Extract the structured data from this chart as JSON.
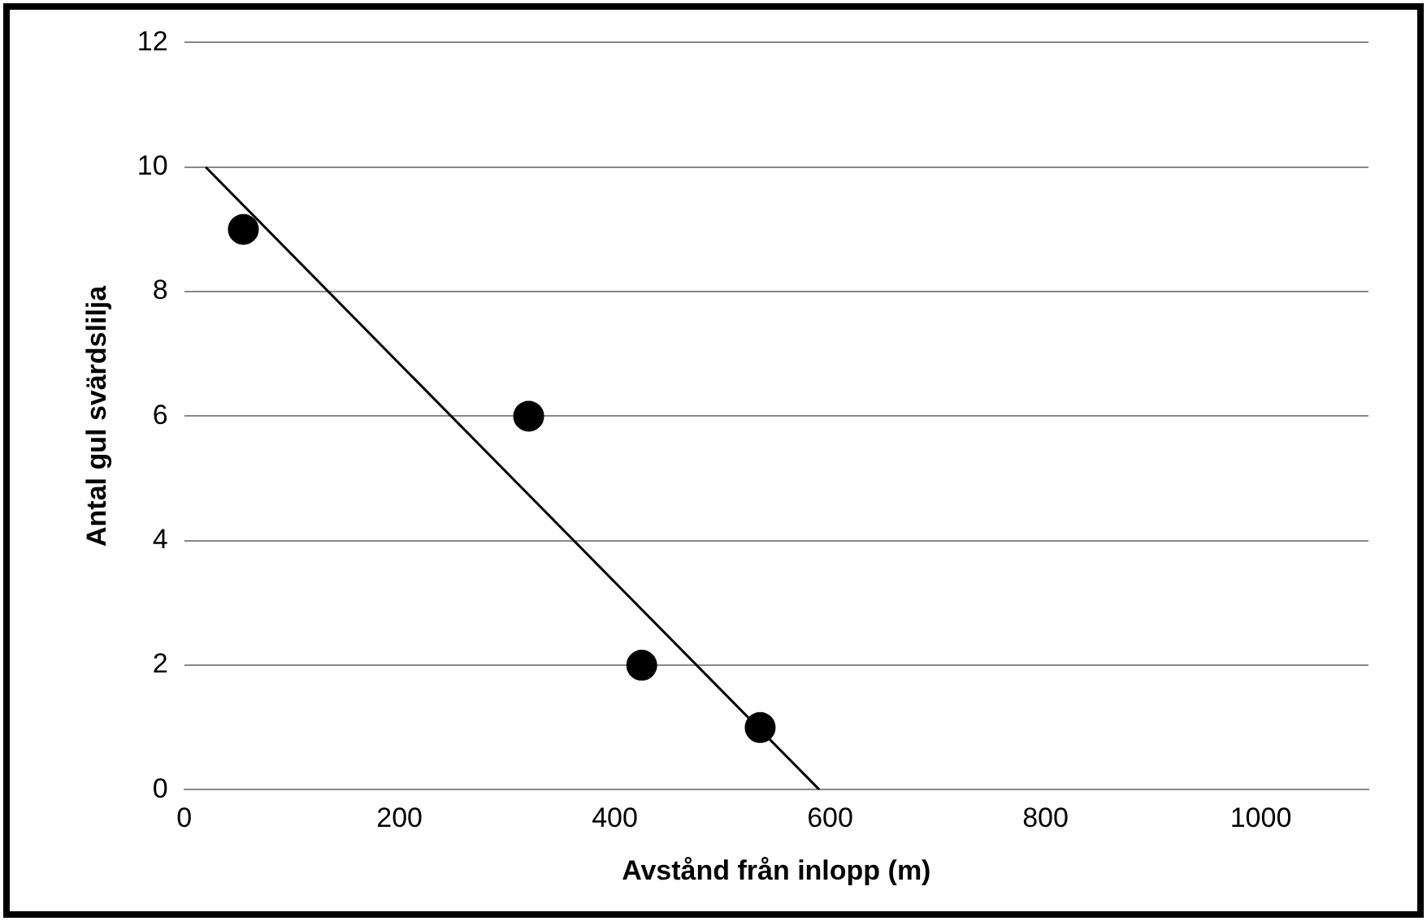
{
  "chart_data": {
    "type": "scatter",
    "xlabel": "Avstånd från inlopp (m)",
    "ylabel": "Antal gul svärdslilja",
    "xlim": [
      0,
      1100
    ],
    "xticks": [
      0,
      200,
      400,
      600,
      800,
      1000
    ],
    "ylim": [
      0,
      12
    ],
    "yticks": [
      0,
      2,
      4,
      6,
      8,
      10,
      12
    ],
    "grid": "y",
    "legend": false,
    "series": [
      {
        "marker": "circle",
        "color": "#000000",
        "x": [
          55,
          320,
          425,
          535
        ],
        "values": [
          9,
          6,
          2,
          1
        ]
      },
      {
        "type": "line",
        "marker": "none",
        "color": "#000000",
        "x": [
          20,
          590
        ],
        "values": [
          10,
          0
        ]
      }
    ]
  }
}
